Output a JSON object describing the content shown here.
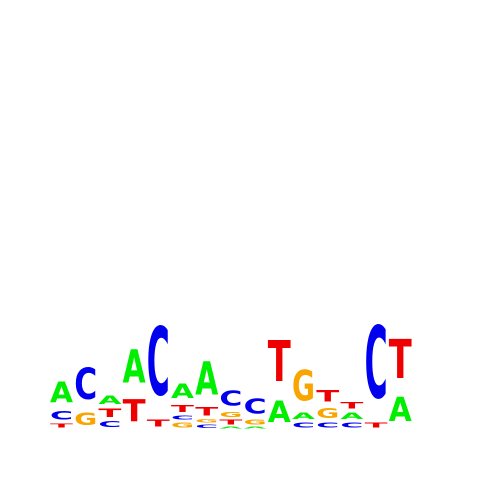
{
  "logo": {
    "alphabet": [
      "A",
      "C",
      "G",
      "T"
    ],
    "colors": {
      "A": "#00ee00",
      "C": "#0000ee",
      "G": "#f9a500",
      "T": "#ee0000"
    },
    "ymax": 2.0,
    "positions": [
      [
        [
          "T",
          0.05
        ],
        [
          "C",
          0.1
        ],
        [
          "A",
          0.25
        ]
      ],
      [
        [
          "G",
          0.15
        ],
        [
          "C",
          0.38
        ]
      ],
      [
        [
          "C",
          0.07
        ],
        [
          "T",
          0.1
        ],
        [
          "A",
          0.1
        ]
      ],
      [
        [
          "T",
          0.27
        ],
        [
          "A",
          0.4
        ]
      ],
      [
        [
          "T",
          0.09
        ],
        [
          "C",
          0.83
        ]
      ],
      [
        [
          "G",
          0.06
        ],
        [
          "C",
          0.05
        ],
        [
          "T",
          0.09
        ],
        [
          "A",
          0.17
        ]
      ],
      [
        [
          "C",
          0.04
        ],
        [
          "G",
          0.04
        ],
        [
          "T",
          0.1
        ],
        [
          "A",
          0.4
        ]
      ],
      [
        [
          "A",
          0.02
        ],
        [
          "T",
          0.06
        ],
        [
          "G",
          0.06
        ],
        [
          "C",
          0.18
        ]
      ],
      [
        [
          "A",
          0.02
        ],
        [
          "G",
          0.06
        ],
        [
          "C",
          0.18
        ]
      ],
      [
        [
          "A",
          0.26
        ],
        [
          "T",
          0.5
        ]
      ],
      [
        [
          "C",
          0.06
        ],
        [
          "A",
          0.08
        ],
        [
          "G",
          0.37
        ]
      ],
      [
        [
          "C",
          0.06
        ],
        [
          "G",
          0.12
        ],
        [
          "T",
          0.14
        ]
      ],
      [
        [
          "C",
          0.06
        ],
        [
          "A",
          0.08
        ],
        [
          "T",
          0.08
        ]
      ],
      [
        [
          "T",
          0.06
        ],
        [
          "C",
          0.88
        ]
      ],
      [
        [
          "A",
          0.29
        ],
        [
          "T",
          0.47
        ]
      ]
    ]
  }
}
